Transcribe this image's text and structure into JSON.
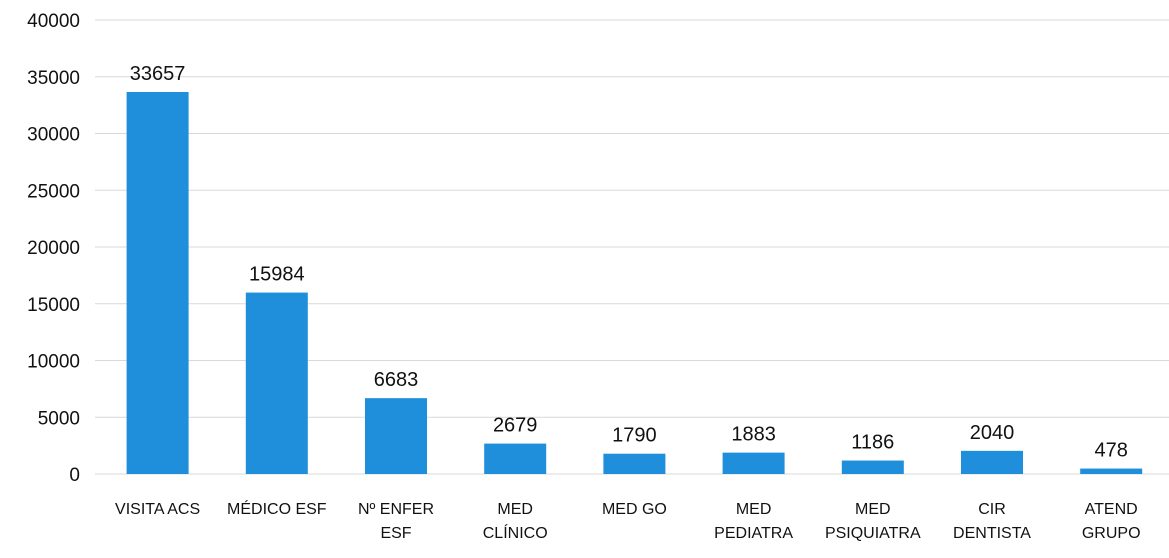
{
  "chart_data": {
    "type": "bar",
    "title": "",
    "xlabel": "",
    "ylabel": "",
    "ylim": [
      0,
      40000
    ],
    "yticks": [
      0,
      5000,
      10000,
      15000,
      20000,
      25000,
      30000,
      35000,
      40000
    ],
    "grid": true,
    "bar_color": "#1f8fdb",
    "categories": [
      "VISITA ACS",
      "MÉDICO ESF",
      "Nº ENFER ESF",
      "MED CLÍNICO",
      "MED GO",
      "MED PEDIATRA",
      "MED PSIQUIATRA",
      "CIR DENTISTA",
      "ATEND GRUPO"
    ],
    "category_lines": [
      [
        "VISITA ACS"
      ],
      [
        "MÉDICO ESF"
      ],
      [
        "Nº ENFER",
        "ESF"
      ],
      [
        "MED",
        "CLÍNICO"
      ],
      [
        "MED GO"
      ],
      [
        "MED",
        "PEDIATRA"
      ],
      [
        "MED",
        "PSIQUIATRA"
      ],
      [
        "CIR",
        "DENTISTA"
      ],
      [
        "ATEND",
        "GRUPO"
      ]
    ],
    "values": [
      33657,
      15984,
      6683,
      2679,
      1790,
      1883,
      1186,
      2040,
      478
    ],
    "data_labels": [
      "33657",
      "15984",
      "6683",
      "2679",
      "1790",
      "1883",
      "1186",
      "2040",
      "478"
    ]
  }
}
